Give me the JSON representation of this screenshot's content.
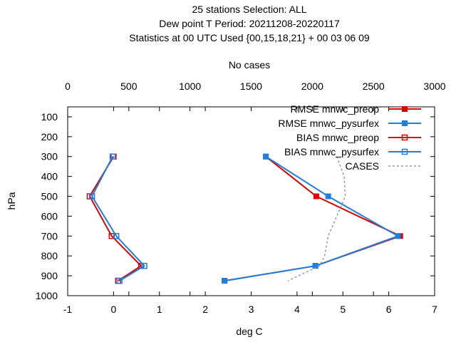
{
  "chart_data": {
    "type": "line",
    "title_lines": [
      "25 stations Selection: ALL",
      "Dew point T  Period: 20211208-20220117",
      "Statistics at 00 UTC  Used {00,15,18,21} + 00 03 06 09"
    ],
    "top_axis": {
      "label": "No cases",
      "range": [
        0,
        3000
      ],
      "ticks": [
        "0",
        "500",
        "1000",
        "1500",
        "2000",
        "2500",
        "3000"
      ],
      "tick_values": [
        0,
        500,
        1000,
        1500,
        2000,
        2500,
        3000
      ]
    },
    "x_axis": {
      "label": "deg C",
      "range": [
        -1,
        7
      ],
      "ticks": [
        "-1",
        "0",
        "1",
        "2",
        "3",
        "4",
        "5",
        "6",
        "7"
      ],
      "tick_values": [
        -1,
        0,
        1,
        2,
        3,
        4,
        5,
        6,
        7
      ]
    },
    "y_axis": {
      "label": "hPa",
      "range": [
        1000,
        50
      ],
      "ticks": [
        "100",
        "200",
        "300",
        "400",
        "500",
        "600",
        "700",
        "800",
        "900",
        "1000"
      ],
      "tick_values": [
        100,
        200,
        300,
        400,
        500,
        600,
        700,
        800,
        900,
        1000
      ]
    },
    "legend_position": "top-right",
    "series": [
      {
        "name": "RMSE mnwc_preop",
        "color": "#e00000",
        "marker": "filled-square",
        "dash": false,
        "points": [
          [
            3.32,
            300
          ],
          [
            4.42,
            500
          ],
          [
            6.25,
            700
          ],
          [
            4.4,
            850
          ],
          [
            2.42,
            925
          ]
        ]
      },
      {
        "name": "RMSE mnwc_pysurfex",
        "color": "#1e7fdc",
        "marker": "filled-square",
        "dash": false,
        "points": [
          [
            3.32,
            300
          ],
          [
            4.68,
            500
          ],
          [
            6.2,
            700
          ],
          [
            4.4,
            850
          ],
          [
            2.42,
            925
          ]
        ]
      },
      {
        "name": "BIAS mnwc_preop",
        "color": "#e00000",
        "marker": "open-square",
        "dash": false,
        "points": [
          [
            0.0,
            300
          ],
          [
            -0.52,
            500
          ],
          [
            -0.04,
            700
          ],
          [
            0.6,
            850
          ],
          [
            0.1,
            925
          ]
        ]
      },
      {
        "name": "BIAS mnwc_pysurfex",
        "color": "#1e7fdc",
        "marker": "open-square",
        "dash": false,
        "points": [
          [
            -0.02,
            300
          ],
          [
            -0.47,
            500
          ],
          [
            0.06,
            700
          ],
          [
            0.67,
            850
          ],
          [
            0.13,
            925
          ]
        ]
      },
      {
        "name": "CASES",
        "color": "#999999",
        "marker": "none",
        "dash": true,
        "axis": "top",
        "points": [
          [
            2200,
            300
          ],
          [
            2260,
            400
          ],
          [
            2270,
            500
          ],
          [
            2200,
            600
          ],
          [
            2130,
            700
          ],
          [
            2100,
            800
          ],
          [
            2060,
            850
          ],
          [
            1800,
            925
          ]
        ]
      }
    ]
  }
}
